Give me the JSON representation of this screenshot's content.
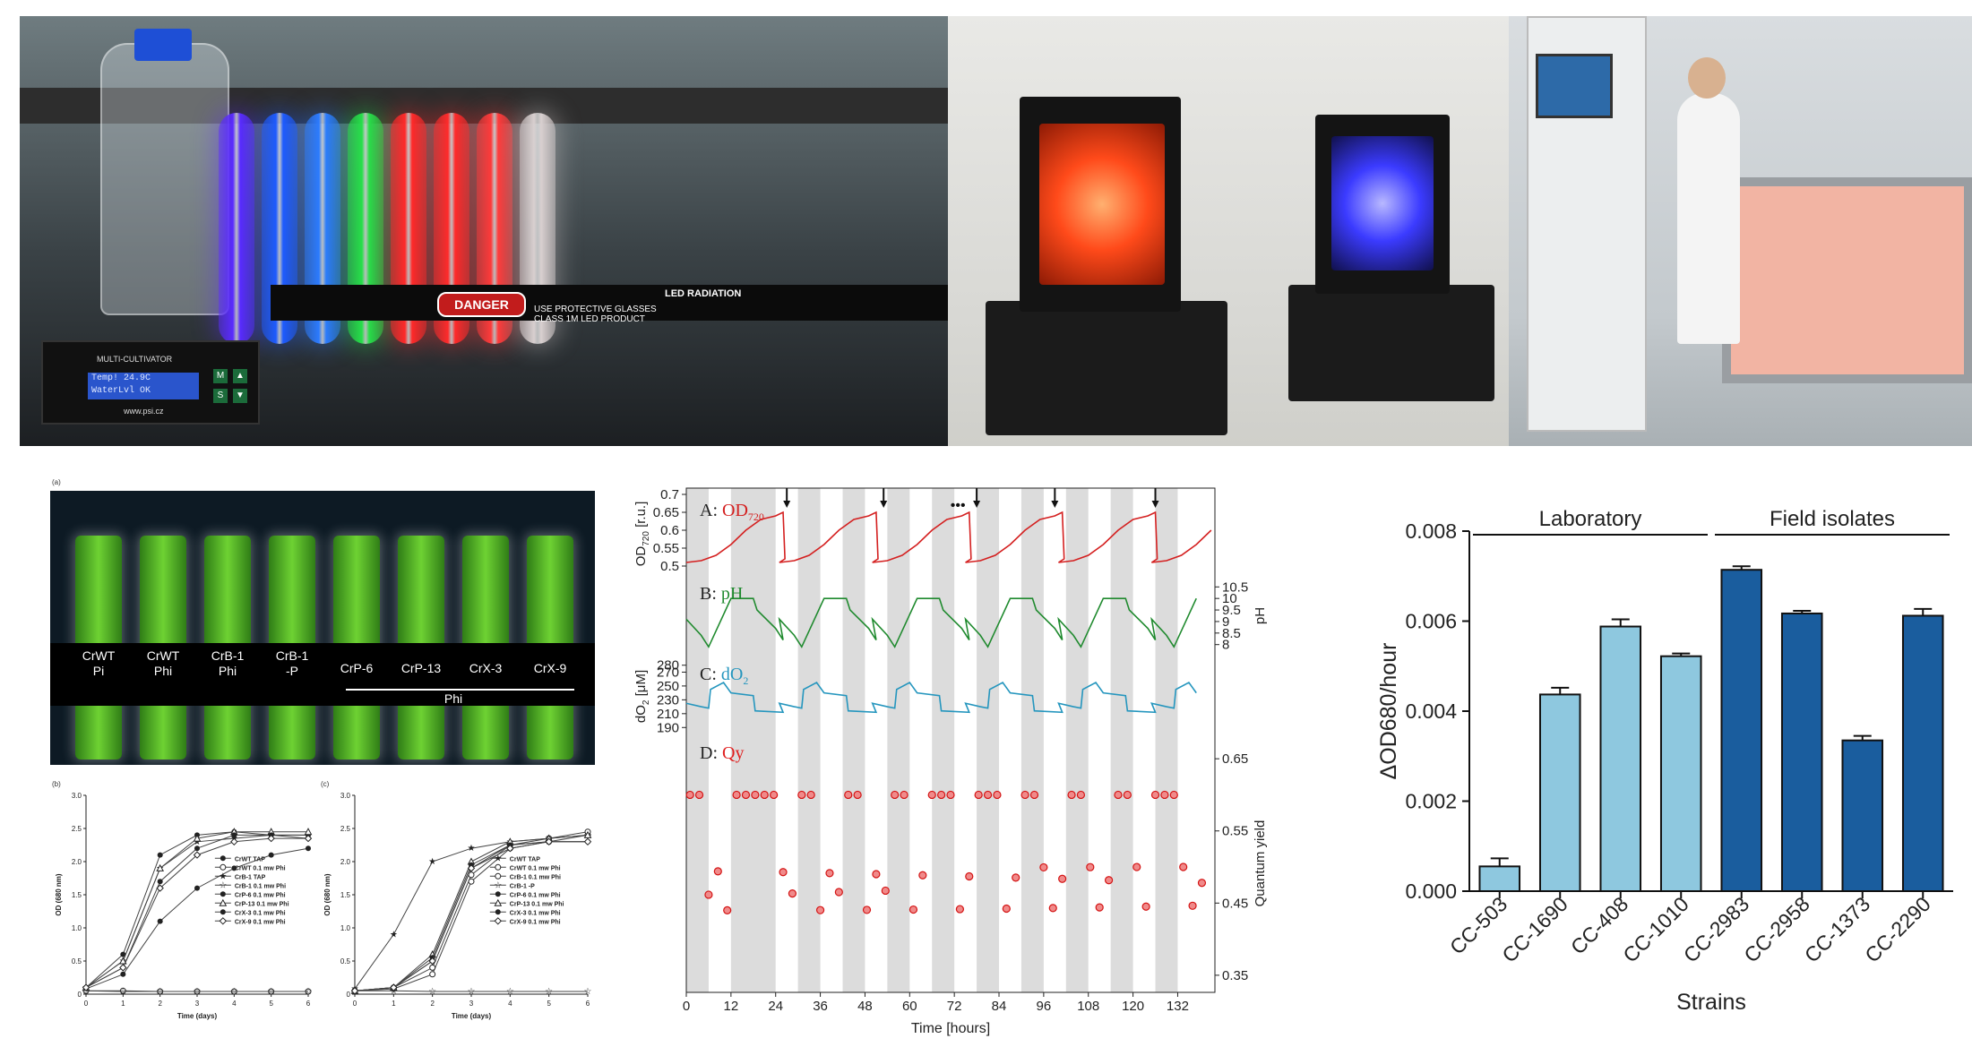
{
  "photos": {
    "multicultivator": {
      "controller_title": "MULTI-CULTIVATOR",
      "display_line1": "Temp! 24.9C",
      "display_line2": "WaterLvl OK",
      "url": "www.psi.cz",
      "led_label": "LED RADIATION",
      "danger": "DANGER",
      "warning_line1": "USE PROTECTIVE GLASSES",
      "warning_line2": "CLASS 1M LED PRODUCT",
      "tube_colors": [
        "#5a2bff",
        "#1e5bff",
        "#2c7bff",
        "#26e04a",
        "#ff2a2a",
        "#ff2b2b",
        "#ff3a3a",
        "#d9d0d0"
      ]
    },
    "photobioreactors": {
      "colors": [
        "#ff4a1a",
        "#3b3bff"
      ]
    },
    "culture_tubes": {
      "panel_label": "(a)",
      "labels": [
        [
          "CrWT",
          "Pi"
        ],
        [
          "CrWT",
          "Phi"
        ],
        [
          "CrB-1",
          "Phi"
        ],
        [
          "CrB-1",
          "-P"
        ],
        [
          "CrP-6",
          ""
        ],
        [
          "CrP-13",
          ""
        ],
        [
          "CrX-3",
          ""
        ],
        [
          "CrX-9",
          ""
        ]
      ],
      "group_label": "Phi"
    }
  },
  "chart_data": [
    {
      "type": "line",
      "panel": "(b)",
      "xlabel": "Time (days)",
      "ylabel": "OD (680 nm)",
      "xlim": [
        0,
        6
      ],
      "ylim": [
        0,
        3.0
      ],
      "xticks": [
        0,
        1,
        2,
        3,
        4,
        5,
        6
      ],
      "yticks": [
        0,
        0.5,
        1.0,
        1.5,
        2.0,
        2.5,
        3.0
      ],
      "ytick_labels": [
        "0",
        "0.5",
        "1.0",
        "1.5",
        "2.0",
        "2.5",
        "3.0"
      ],
      "x": [
        0,
        1,
        2,
        3,
        4,
        5,
        6
      ],
      "series": [
        {
          "name": "CrWT TAP",
          "values": [
            0.08,
            0.3,
            1.1,
            1.6,
            1.9,
            2.1,
            2.2
          ],
          "marker": "filled-circle"
        },
        {
          "name": "CrWT 0.1 mw Phi",
          "values": [
            0.05,
            0.05,
            0.04,
            0.04,
            0.04,
            0.04,
            0.04
          ],
          "marker": "open-circle"
        },
        {
          "name": "CrB-1 TAP",
          "values": [
            0.1,
            0.5,
            1.9,
            2.3,
            2.35,
            2.4,
            2.4
          ],
          "marker": "filled-star"
        },
        {
          "name": "CrB-1 0.1 mw Phi",
          "values": [
            0.05,
            0.04,
            0.04,
            0.04,
            0.04,
            0.04,
            0.04
          ],
          "marker": "open-star"
        },
        {
          "name": "CrP-6 0.1 mw Phi",
          "values": [
            0.1,
            0.6,
            2.1,
            2.4,
            2.45,
            2.4,
            2.4
          ],
          "marker": "filled-circle"
        },
        {
          "name": "CrP-13 0.1 mw Phi",
          "values": [
            0.1,
            0.5,
            1.9,
            2.35,
            2.45,
            2.45,
            2.45
          ],
          "marker": "open-triangle"
        },
        {
          "name": "CrX-3 0.1 mw Phi",
          "values": [
            0.1,
            0.4,
            1.7,
            2.2,
            2.4,
            2.4,
            2.35
          ],
          "marker": "filled-circle"
        },
        {
          "name": "CrX-9 0.1 mw Phi",
          "values": [
            0.1,
            0.4,
            1.6,
            2.1,
            2.3,
            2.35,
            2.35
          ],
          "marker": "open-diamond"
        }
      ]
    },
    {
      "type": "line",
      "panel": "(c)",
      "xlabel": "Time (days)",
      "ylabel": "OD (680 nm)",
      "xlim": [
        0,
        6
      ],
      "ylim": [
        0,
        3.0
      ],
      "xticks": [
        0,
        1,
        2,
        3,
        4,
        5,
        6
      ],
      "yticks": [
        0,
        0.5,
        1.0,
        1.5,
        2.0,
        2.5,
        3.0
      ],
      "ytick_labels": [
        "0",
        "0.5",
        "1.0",
        "1.5",
        "2.0",
        "2.5",
        "3.0"
      ],
      "x": [
        0,
        1,
        2,
        3,
        4,
        5,
        6
      ],
      "series": [
        {
          "name": "CrWT TAP",
          "values": [
            0.08,
            0.9,
            2.0,
            2.2,
            2.3,
            2.35,
            2.4
          ],
          "marker": "filled-star"
        },
        {
          "name": "CrWT 0.1 mw Phi",
          "values": [
            0.05,
            0.08,
            0.3,
            1.7,
            2.2,
            2.3,
            2.4
          ],
          "marker": "open-circle"
        },
        {
          "name": "CrB-1 0.1 mw Phi",
          "values": [
            0.05,
            0.1,
            0.4,
            1.8,
            2.25,
            2.35,
            2.45
          ],
          "marker": "open-circle"
        },
        {
          "name": "CrB-1 -P",
          "values": [
            0.05,
            0.05,
            0.04,
            0.04,
            0.04,
            0.04,
            0.04
          ],
          "marker": "open-star"
        },
        {
          "name": "CrP-6 0.1 mw Phi",
          "values": [
            0.05,
            0.1,
            0.5,
            1.9,
            2.25,
            2.3,
            2.3
          ],
          "marker": "filled-circle"
        },
        {
          "name": "CrP-13 0.1 mw Phi",
          "values": [
            0.05,
            0.1,
            0.6,
            2.0,
            2.3,
            2.35,
            2.4
          ],
          "marker": "open-triangle"
        },
        {
          "name": "CrX-3 0.1 mw Phi",
          "values": [
            0.05,
            0.1,
            0.55,
            1.95,
            2.25,
            2.3,
            2.3
          ],
          "marker": "filled-circle"
        },
        {
          "name": "CrX-9 0.1 mw Phi",
          "values": [
            0.05,
            0.1,
            0.5,
            1.9,
            2.2,
            2.3,
            2.3
          ],
          "marker": "open-diamond"
        }
      ]
    },
    {
      "type": "line",
      "panel": "time-series",
      "xlabel": "Time [hours]",
      "xlim": [
        0,
        142
      ],
      "xticks": [
        0,
        12,
        24,
        36,
        48,
        60,
        72,
        84,
        96,
        108,
        120,
        132
      ],
      "dark_periods": [
        [
          0,
          6
        ],
        [
          12,
          18
        ],
        [
          24,
          30
        ],
        [
          36,
          42
        ],
        [
          48,
          54
        ],
        [
          60,
          66
        ],
        [
          72,
          78
        ],
        [
          84,
          90
        ],
        [
          96,
          102
        ],
        [
          108,
          114
        ],
        [
          120,
          126
        ],
        [
          132,
          138
        ]
      ],
      "dark_periods_hours": [
        [
          0,
          6
        ],
        [
          12,
          24
        ],
        [
          30,
          42
        ],
        [
          48,
          54
        ]
      ],
      "gray_bands": [
        [
          0,
          6
        ],
        [
          12,
          24
        ],
        [
          30,
          36
        ],
        [
          42,
          48
        ],
        [
          54,
          60
        ],
        [
          66,
          72
        ],
        [
          78,
          84
        ],
        [
          90,
          96
        ],
        [
          102,
          108
        ],
        [
          114,
          120
        ],
        [
          126,
          132
        ]
      ],
      "subplots": [
        {
          "label": "A:",
          "name": "OD",
          "sub": "720",
          "color": "#d42020",
          "ylabel": "OD",
          "ylabel_sub": "720",
          "ylabel_unit": "[r.u.]",
          "yticks": [
            0.5,
            0.55,
            0.6,
            0.65,
            0.7
          ],
          "ylim": [
            0.48,
            0.7
          ],
          "cycle": [
            [
              0,
              0.51
            ],
            [
              4,
              0.515
            ],
            [
              8,
              0.53
            ],
            [
              12,
              0.56
            ],
            [
              16,
              0.6
            ],
            [
              20,
              0.63
            ],
            [
              24,
              0.64
            ],
            [
              26,
              0.65
            ],
            [
              26.5,
              0.52
            ]
          ]
        },
        {
          "label": "B:",
          "name": "pH",
          "color": "#1f8a2e",
          "ylabel": "pH",
          "yticks": [
            8,
            8.5,
            9,
            9.5,
            10,
            10.5
          ],
          "ylim": [
            7.6,
            10.9
          ],
          "cycle": [
            [
              0,
              9.1
            ],
            [
              4,
              8.4
            ],
            [
              6,
              7.9
            ],
            [
              12,
              10.0
            ],
            [
              18,
              10.0
            ],
            [
              19,
              9.5
            ],
            [
              24,
              8.7
            ],
            [
              26,
              8.2
            ]
          ]
        },
        {
          "label": "C:",
          "name": "dO",
          "sub": "2",
          "color": "#2596be",
          "ylabel": "dO",
          "ylabel_sub": "2",
          "ylabel_unit": "[μM]",
          "yticks": [
            190,
            210,
            230,
            250,
            270,
            280
          ],
          "ylim": [
            180,
            290
          ],
          "cycle": [
            [
              0,
              225
            ],
            [
              4,
              220
            ],
            [
              6,
              218
            ],
            [
              6.5,
              245
            ],
            [
              10,
              255
            ],
            [
              12,
              240
            ],
            [
              18,
              236
            ],
            [
              18.5,
              214
            ],
            [
              26,
              212
            ]
          ]
        },
        {
          "label": "D:",
          "name": "Qy",
          "color": "#e02020",
          "ylabel": "Quantum yield",
          "yticks": [
            0.35,
            0.45,
            0.55,
            0.65
          ],
          "ylim": [
            0.33,
            0.68
          ]
        }
      ],
      "arrows_at": [
        27,
        53,
        78,
        99,
        126
      ],
      "dots_label": "•••"
    },
    {
      "type": "bar",
      "panel": "strains",
      "xlabel": "Strains",
      "ylabel": "ΔOD680/hour",
      "ylim": [
        0,
        0.008
      ],
      "yticks": [
        0,
        0.002,
        0.004,
        0.006,
        0.008
      ],
      "ytick_labels": [
        "0.000",
        "0.002",
        "0.004",
        "0.006",
        "0.008"
      ],
      "categories": [
        "CC-503",
        "CC-1690",
        "CC-408",
        "CC-1010",
        "CC-2983",
        "CC-2958",
        "CC-1373",
        "CC-2290"
      ],
      "values": [
        0.00055,
        0.00437,
        0.00588,
        0.00522,
        0.00714,
        0.00617,
        0.00335,
        0.00612
      ],
      "errors": [
        0.00018,
        0.00015,
        0.00016,
        6e-05,
        8e-05,
        6e-05,
        0.0001,
        0.00015
      ],
      "groups": [
        {
          "name": "Laboratory",
          "range": [
            0,
            3
          ],
          "color": "#8ec8df"
        },
        {
          "name": "Field isolates",
          "range": [
            4,
            7
          ],
          "color": "#1a5d9e"
        }
      ]
    }
  ]
}
